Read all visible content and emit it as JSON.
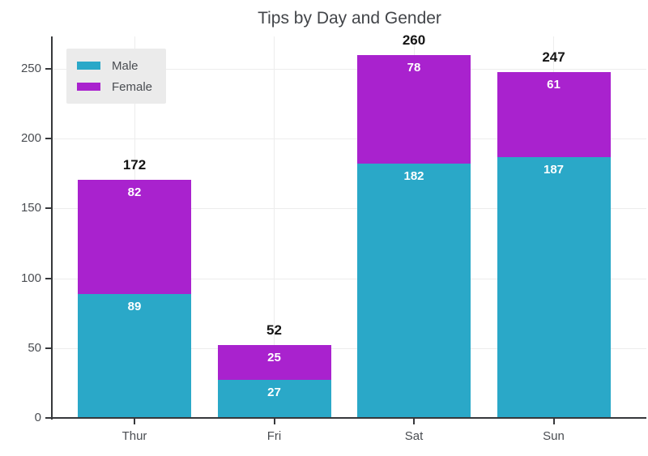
{
  "chart_data": {
    "type": "bar",
    "stacked": true,
    "title": "Tips by Day and Gender",
    "categories": [
      "Thur",
      "Fri",
      "Sat",
      "Sun"
    ],
    "series": [
      {
        "name": "Male",
        "color": "#2AA8C8",
        "values": [
          89,
          27,
          182,
          187
        ],
        "labels": [
          "89",
          "27",
          "182",
          "187"
        ]
      },
      {
        "name": "Female",
        "color": "#A922CE",
        "values": [
          82,
          25,
          78,
          61
        ],
        "labels": [
          "82",
          "25",
          "78",
          "61"
        ]
      }
    ],
    "totals": [
      "172",
      "52",
      "260",
      "247"
    ],
    "yticks": [
      "0",
      "50",
      "100",
      "150",
      "200",
      "250"
    ],
    "ylim": [
      0,
      273
    ],
    "xlabel": "",
    "ylabel": "",
    "grid": true,
    "legend_position": "top-left",
    "colors": {
      "background": "#ffffff",
      "inside_label": "#ffffff",
      "total_label": "#151515",
      "axis_line": "#36383b",
      "tick_text": "#4a4d52",
      "title_text": "#424549",
      "gridline": "#ededed",
      "legend_bg": "#ebebeb"
    }
  }
}
